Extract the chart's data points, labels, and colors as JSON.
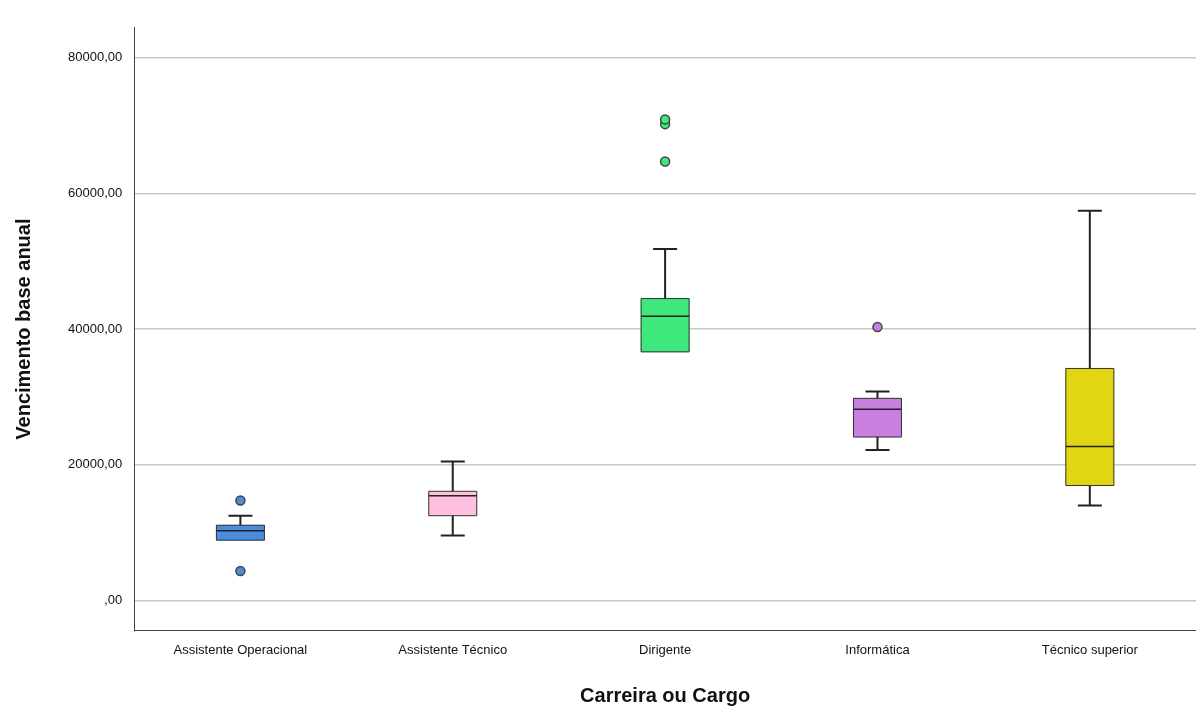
{
  "chart_data": {
    "type": "box",
    "xlabel": "Carreira ou Cargo",
    "ylabel": "Vencimento base anual",
    "categories": [
      "Assistente Operacional",
      "Assistente Técnico",
      "Dirigente",
      "Informática",
      "Técnico superior"
    ],
    "colors": [
      "#4a8ddc",
      "#ffc0e0",
      "#3ee87c",
      "#c97fe0",
      "#e2d512"
    ],
    "boxes": [
      {
        "low": 8900,
        "q1": 8900,
        "median": 10300,
        "q3": 11100,
        "high": 12500,
        "outliers": [
          14750,
          4350
        ]
      },
      {
        "low": 9600,
        "q1": 12500,
        "median": 15450,
        "q3": 16100,
        "high": 20500
      },
      {
        "low": 36650,
        "q1": 36650,
        "median": 41900,
        "q3": 44500,
        "high": 51800,
        "outliers": [
          64700,
          70200,
          70900
        ]
      },
      {
        "low": 22200,
        "q1": 24100,
        "median": 28200,
        "q3": 29800,
        "high": 30800,
        "outliers": [
          40300
        ]
      },
      {
        "low": 14000,
        "q1": 16950,
        "median": 22700,
        "q3": 34200,
        "high": 57450
      }
    ],
    "ylim": [
      -4400,
      84400
    ],
    "yticks": [
      {
        "value": 0,
        "label": ",00"
      },
      {
        "value": 20000,
        "label": "20000,00"
      },
      {
        "value": 40000,
        "label": "40000,00"
      },
      {
        "value": 60000,
        "label": "60000,00"
      },
      {
        "value": 80000,
        "label": "80000,00"
      }
    ],
    "grid": "y",
    "legend": false
  }
}
